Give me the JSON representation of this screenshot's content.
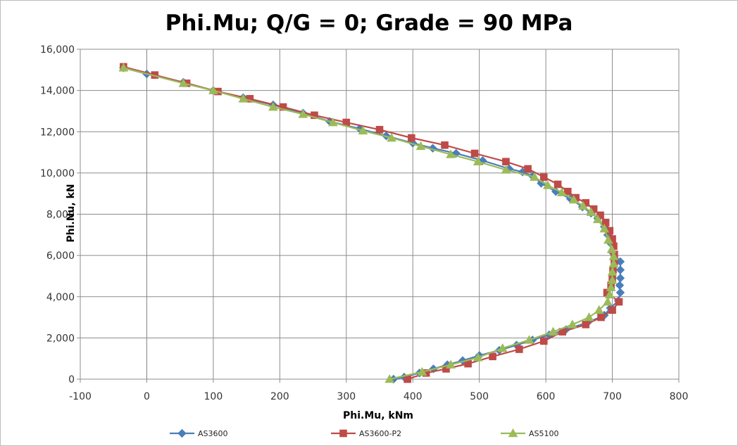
{
  "chart_data": {
    "type": "scatter",
    "title": "Phi.Mu; Q/G = 0; Grade = 90 MPa",
    "xlabel": "Phi.Mu, kNm",
    "ylabel": "Phi.Nu, kN",
    "xlim": [
      -100,
      800
    ],
    "ylim": [
      0,
      16000
    ],
    "xticks": [
      -100,
      0,
      100,
      200,
      300,
      400,
      500,
      600,
      700,
      800
    ],
    "xtick_labels": [
      "-100",
      "0",
      "100",
      "200",
      "300",
      "400",
      "500",
      "600",
      "700",
      "800"
    ],
    "yticks": [
      0,
      2000,
      4000,
      6000,
      8000,
      10000,
      12000,
      14000,
      16000
    ],
    "ytick_labels": [
      "0",
      "2,000",
      "4,000",
      "6,000",
      "8,000",
      "10,000",
      "12,000",
      "14,000",
      "16,000"
    ],
    "grid": true,
    "legend_position": "bottom",
    "series": [
      {
        "name": "AS3600",
        "color": "#4a7ebb",
        "marker": "diamond",
        "points": [
          [
            -35,
            15100
          ],
          [
            0,
            14800
          ],
          [
            55,
            14400
          ],
          [
            100,
            14000
          ],
          [
            145,
            13650
          ],
          [
            190,
            13300
          ],
          [
            235,
            12900
          ],
          [
            275,
            12500
          ],
          [
            320,
            12150
          ],
          [
            360,
            11800
          ],
          [
            400,
            11450
          ],
          [
            430,
            11200
          ],
          [
            465,
            10950
          ],
          [
            505,
            10600
          ],
          [
            545,
            10200
          ],
          [
            565,
            10050
          ],
          [
            580,
            9850
          ],
          [
            593,
            9500
          ],
          [
            615,
            9100
          ],
          [
            637,
            8750
          ],
          [
            655,
            8350
          ],
          [
            668,
            8050
          ],
          [
            678,
            7800
          ],
          [
            688,
            7400
          ],
          [
            693,
            7000
          ],
          [
            697,
            6600
          ],
          [
            700,
            6150
          ],
          [
            712,
            5700
          ],
          [
            712,
            5300
          ],
          [
            712,
            4900
          ],
          [
            711,
            4550
          ],
          [
            712,
            4200
          ],
          [
            709,
            3800
          ],
          [
            697,
            3450
          ],
          [
            688,
            3100
          ],
          [
            663,
            2750
          ],
          [
            630,
            2400
          ],
          [
            605,
            2150
          ],
          [
            580,
            1900
          ],
          [
            556,
            1650
          ],
          [
            530,
            1400
          ],
          [
            500,
            1150
          ],
          [
            475,
            900
          ],
          [
            452,
            700
          ],
          [
            431,
            500
          ],
          [
            410,
            300
          ],
          [
            387,
            100
          ],
          [
            371,
            0
          ]
        ]
      },
      {
        "name": "AS3600-P2",
        "color": "#be4b48",
        "marker": "square",
        "points": [
          [
            -35,
            15150
          ],
          [
            12,
            14750
          ],
          [
            60,
            14350
          ],
          [
            107,
            13950
          ],
          [
            155,
            13600
          ],
          [
            205,
            13200
          ],
          [
            252,
            12800
          ],
          [
            300,
            12450
          ],
          [
            350,
            12100
          ],
          [
            398,
            11700
          ],
          [
            448,
            11350
          ],
          [
            493,
            10950
          ],
          [
            540,
            10550
          ],
          [
            573,
            10200
          ],
          [
            597,
            9800
          ],
          [
            618,
            9450
          ],
          [
            633,
            9100
          ],
          [
            645,
            8800
          ],
          [
            660,
            8550
          ],
          [
            672,
            8250
          ],
          [
            682,
            7950
          ],
          [
            690,
            7600
          ],
          [
            696,
            7200
          ],
          [
            700,
            6800
          ],
          [
            702,
            6450
          ],
          [
            703,
            6050
          ],
          [
            703,
            5700
          ],
          [
            701,
            5300
          ],
          [
            700,
            4900
          ],
          [
            698,
            4550
          ],
          [
            692,
            4200
          ],
          [
            710,
            3750
          ],
          [
            700,
            3350
          ],
          [
            683,
            3000
          ],
          [
            660,
            2650
          ],
          [
            625,
            2300
          ],
          [
            597,
            1850
          ],
          [
            560,
            1450
          ],
          [
            520,
            1100
          ],
          [
            483,
            750
          ],
          [
            450,
            500
          ],
          [
            420,
            300
          ],
          [
            392,
            0
          ]
        ]
      },
      {
        "name": "AS5100",
        "color": "#9bbb59",
        "marker": "triangle",
        "points": [
          [
            -35,
            15100
          ],
          [
            55,
            14350
          ],
          [
            100,
            14000
          ],
          [
            145,
            13600
          ],
          [
            190,
            13200
          ],
          [
            235,
            12850
          ],
          [
            280,
            12450
          ],
          [
            325,
            12050
          ],
          [
            368,
            11700
          ],
          [
            412,
            11300
          ],
          [
            457,
            10900
          ],
          [
            498,
            10550
          ],
          [
            540,
            10150
          ],
          [
            583,
            9800
          ],
          [
            603,
            9400
          ],
          [
            624,
            9050
          ],
          [
            642,
            8700
          ],
          [
            656,
            8400
          ],
          [
            668,
            8100
          ],
          [
            678,
            7750
          ],
          [
            688,
            7300
          ],
          [
            694,
            6750
          ],
          [
            699,
            6300
          ],
          [
            702,
            5950
          ],
          [
            702,
            5600
          ],
          [
            700,
            5200
          ],
          [
            700,
            4800
          ],
          [
            698,
            4450
          ],
          [
            696,
            4100
          ],
          [
            693,
            3750
          ],
          [
            680,
            3350
          ],
          [
            665,
            3000
          ],
          [
            640,
            2650
          ],
          [
            611,
            2300
          ],
          [
            575,
            1900
          ],
          [
            535,
            1500
          ],
          [
            498,
            1050
          ],
          [
            457,
            700
          ],
          [
            414,
            350
          ],
          [
            365,
            0
          ]
        ]
      }
    ]
  }
}
